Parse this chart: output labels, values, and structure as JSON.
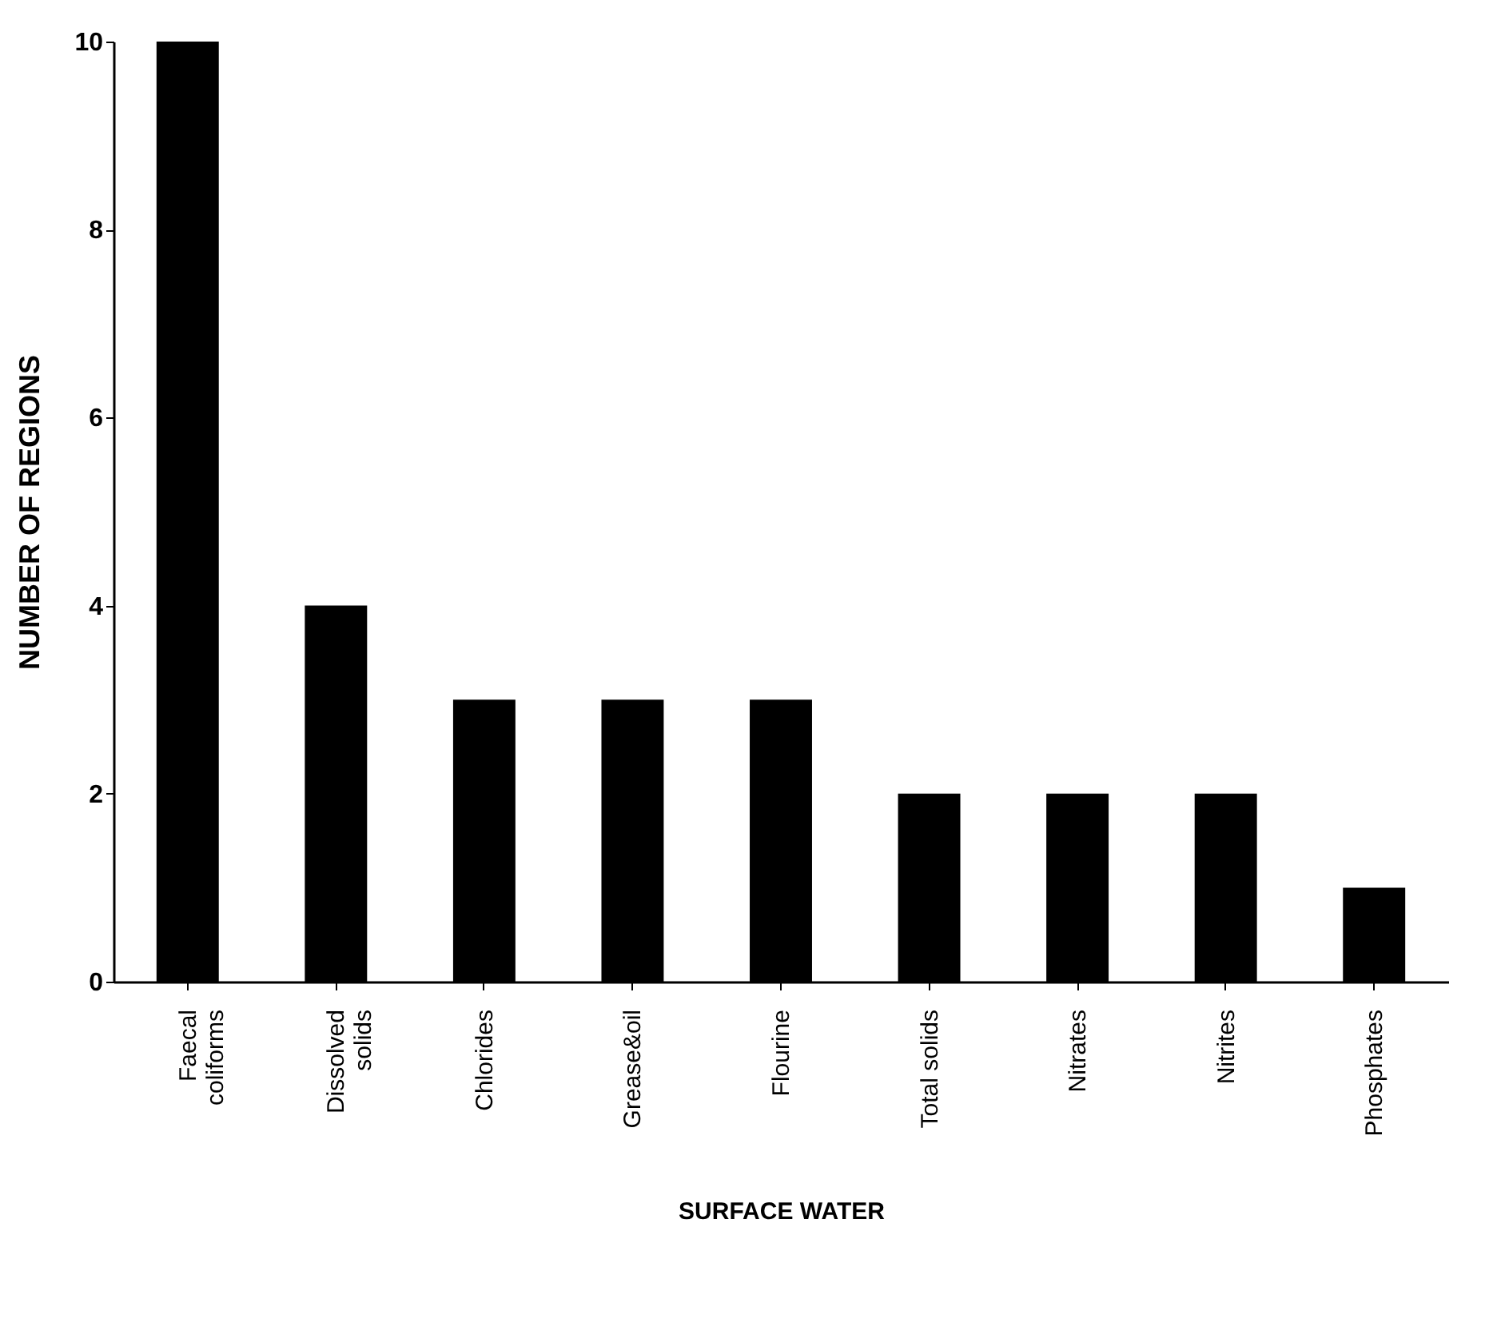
{
  "chart_data": {
    "type": "bar",
    "xlabel": "SURFACE WATER",
    "ylabel": "NUMBER OF REGIONS",
    "categories": [
      "Faecal coliforms",
      "Dissolved solids",
      "Chlorides",
      "Grease&oil",
      "Flourine",
      "Total solids",
      "Nitrates",
      "Nitrites",
      "Phosphates"
    ],
    "values": [
      10,
      4,
      3,
      3,
      3,
      2,
      2,
      2,
      1
    ],
    "color": "#000000",
    "ylim": [
      0,
      10
    ],
    "yticks": [
      0,
      2,
      4,
      6,
      8,
      10
    ],
    "grid": false
  }
}
